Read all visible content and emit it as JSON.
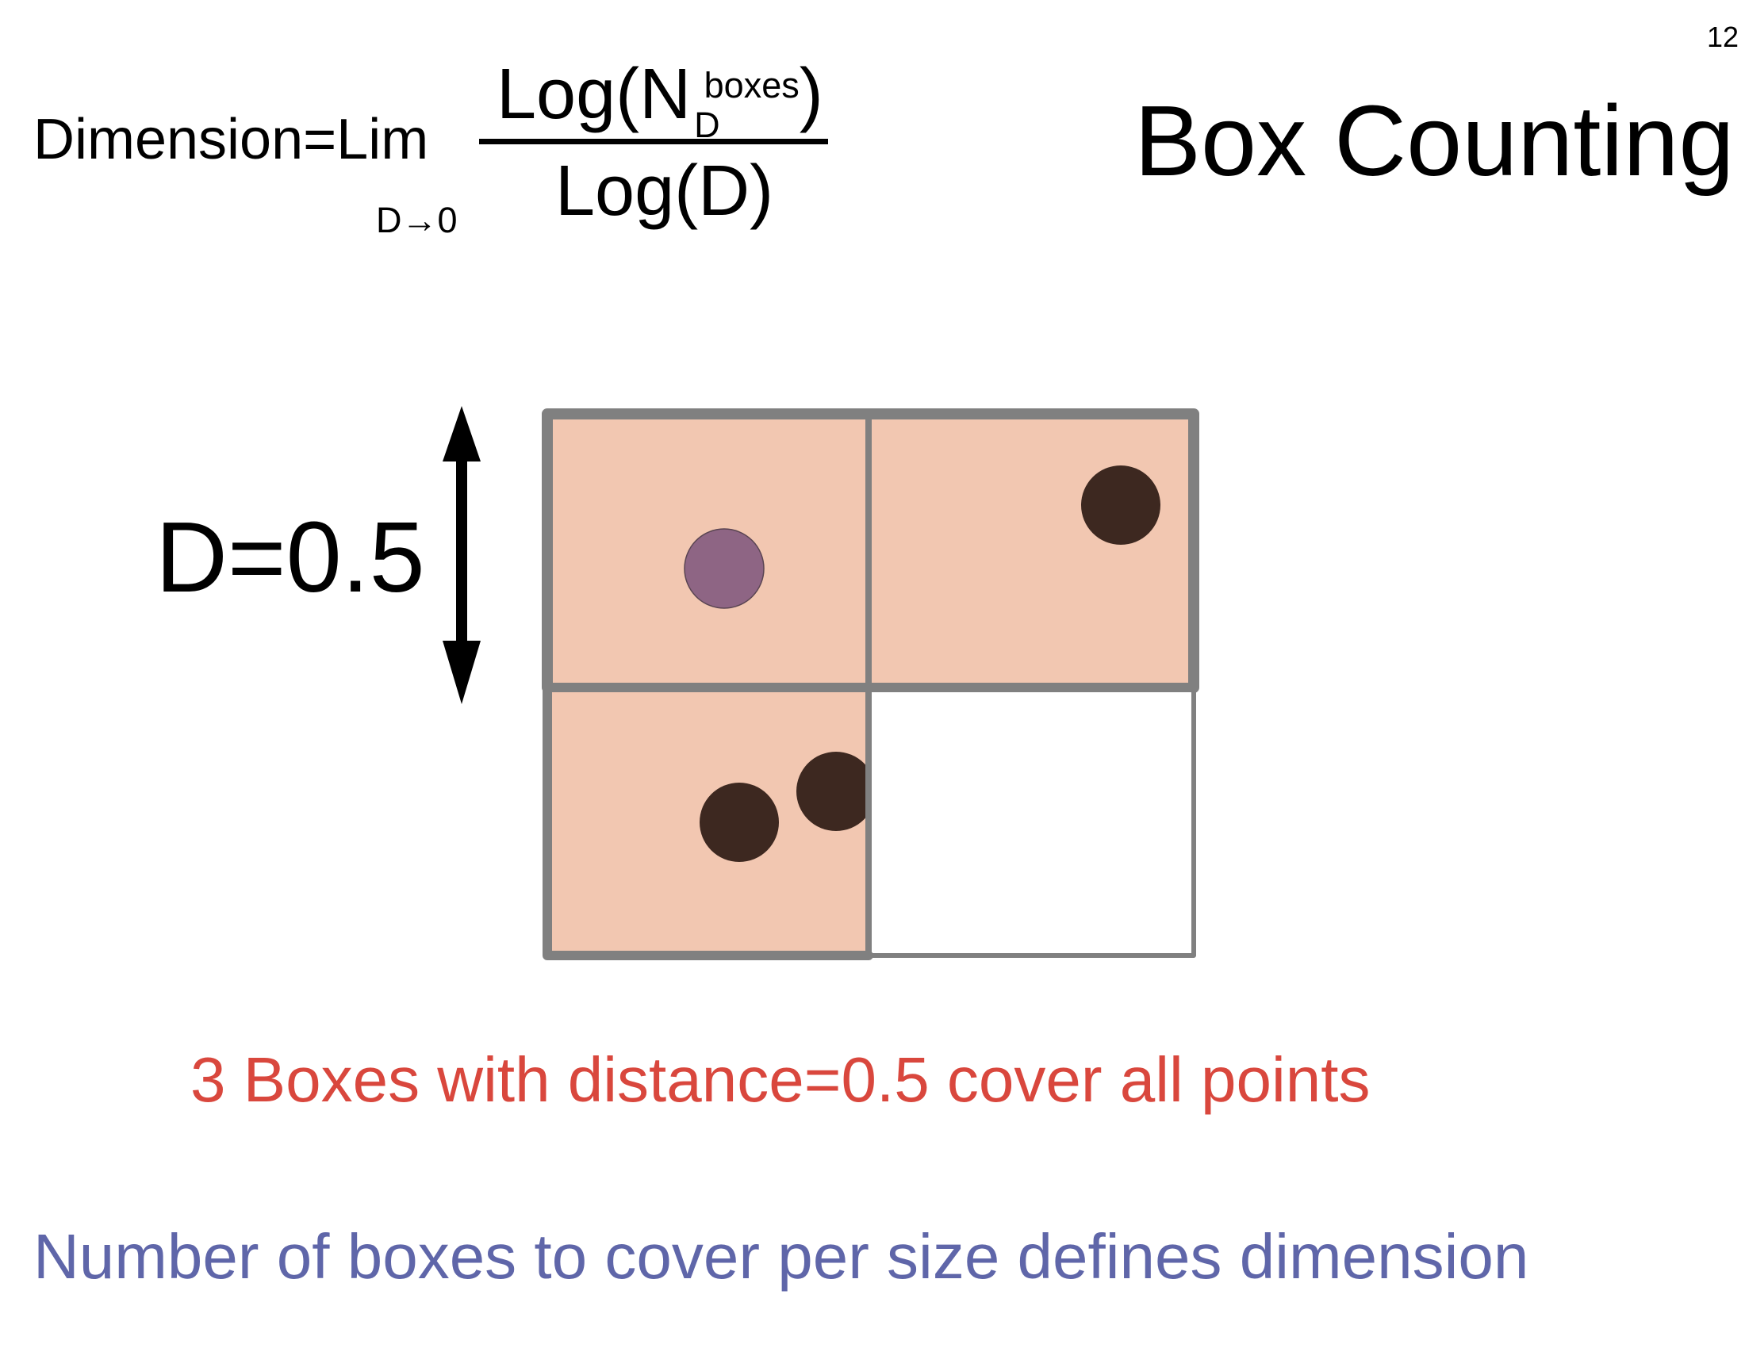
{
  "slide": {
    "page_number": "12",
    "title": "Box Counting"
  },
  "formula": {
    "lhs": "Dimension=Lim",
    "limit_sub": "D→0",
    "numerator_main": "Log(N",
    "numerator_sub": "D",
    "numerator_sup": "boxes",
    "numerator_close": ")",
    "denominator": "Log(D)"
  },
  "diagram": {
    "distance_label": "D=0.5",
    "box_fill": "#f2c7b1",
    "grid_stroke": "#808080",
    "boxes": [
      {
        "name": "top-left",
        "covered": true
      },
      {
        "name": "top-right",
        "covered": true
      },
      {
        "name": "bottom-left",
        "covered": true
      },
      {
        "name": "bottom-right",
        "covered": false
      }
    ],
    "points": [
      {
        "box": "top-left",
        "color": "#8e6584"
      },
      {
        "box": "top-right",
        "color": "#3d2820"
      },
      {
        "box": "bottom-left",
        "color": "#3d2820"
      },
      {
        "box": "bottom-left",
        "color": "#3d2820"
      }
    ]
  },
  "captions": {
    "red": "3 Boxes with distance=0.5 cover all points",
    "blue": "Number of boxes to cover per size defines dimension",
    "red_color": "#d9473d",
    "blue_color": "#5f66a9"
  }
}
